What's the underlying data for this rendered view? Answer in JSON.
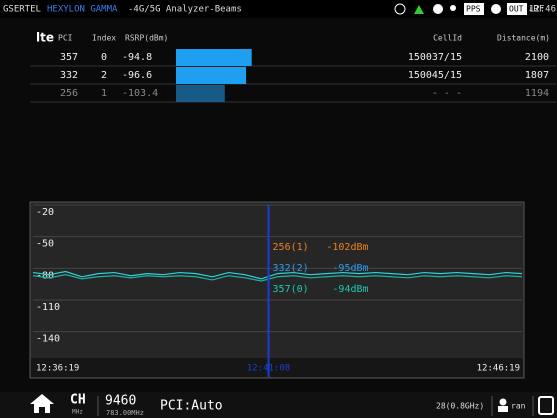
{
  "status_bar": {
    "brand": "GSERTEL",
    "product": "HEXYLON GAMMA",
    "mode": "-4G/5G Analyzer-Beams",
    "pps": "PPS",
    "out": "OUT",
    "rf": "↓RF",
    "time": "12:46"
  },
  "table": {
    "logo": "lte",
    "columns": [
      "PCI",
      "Index",
      "RSRP(dBm)",
      "CellId",
      "Distance(m)"
    ],
    "rows": [
      [
        357,
        0,
        -94.8,
        "150037/15",
        2100
      ],
      [
        332,
        2,
        -96.6,
        "150045/15",
        1807
      ],
      [
        256,
        1,
        -103.4,
        "- - -",
        1194
      ]
    ],
    "bar_colors": [
      "#1e9ff0",
      "#1e9ff0",
      "#175a85"
    ],
    "bar_xlim": [
      -119,
      -80
    ]
  },
  "chart_data": {
    "type": "line",
    "ylim": [
      -164,
      -20
    ],
    "yticks": [
      -20,
      -50,
      -80,
      -110,
      -140
    ],
    "grid": true,
    "xlim": [
      0,
      600
    ],
    "xticks": [
      {
        "value": 0,
        "label": "12:36:19"
      },
      {
        "value": 289,
        "label": "12:41:08"
      },
      {
        "value": 600,
        "label": "12:46:19"
      }
    ],
    "x": [
      0,
      20,
      40,
      60,
      80,
      100,
      120,
      140,
      160,
      180,
      200,
      220,
      240,
      260,
      280,
      300,
      320,
      340,
      360,
      380,
      400,
      420,
      440,
      460,
      480,
      500,
      520,
      540,
      560,
      580,
      600
    ],
    "series": [
      {
        "color": "#2ad4e0",
        "values": [
          -84,
          -86,
          -83,
          -88,
          -85,
          -84,
          -87,
          -85,
          -86,
          -84,
          -85,
          -88,
          -84,
          -86,
          -90,
          -85,
          -84,
          -86,
          -85,
          -84,
          -85,
          -84,
          -85,
          -86,
          -84,
          -85,
          -84,
          -85,
          -86,
          -84,
          -85
        ]
      },
      {
        "color": "#1fb0a0",
        "values": [
          -87,
          -89,
          -86,
          -90,
          -88,
          -87,
          -89,
          -87,
          -88,
          -87,
          -88,
          -91,
          -87,
          -89,
          -92,
          -88,
          -87,
          -89,
          -88,
          -87,
          -88,
          -87,
          -88,
          -89,
          -87,
          -88,
          -87,
          -88,
          -89,
          -87,
          -88
        ]
      }
    ],
    "annotations": [
      {
        "label": "256(1)",
        "value": "-102dBm",
        "color": "#f08020"
      },
      {
        "label": "332(2)",
        "value": "-95dBm",
        "color": "#2a9df4"
      },
      {
        "label": "357(0)",
        "value": "-94dBm",
        "color": "#1fc8b0"
      }
    ]
  },
  "bottom_bar": {
    "ch": "CH",
    "ch_unit": "MHz",
    "channel": "9460",
    "freq": "783.00MHz",
    "pci": "PCI:Auto",
    "band": "28(0.8GHz)",
    "user": "ran"
  }
}
